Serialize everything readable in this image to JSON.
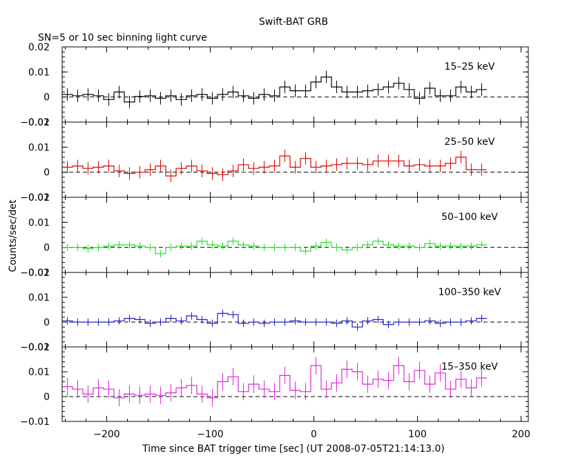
{
  "title": "Swift-BAT GRB",
  "subtitle": "SN=5 or 10 sec binning light curve",
  "ylabel": "Counts/sec/det",
  "xlabel": "Time since BAT trigger time [sec] (UT 2008-07-05T21:14:13.0)",
  "chart_data": {
    "type": "line",
    "step": true,
    "xlim": [
      -243,
      207
    ],
    "x_ticks": [
      -200,
      -100,
      0,
      100,
      200
    ],
    "x_tick_labels": [
      "−200",
      "−100",
      "0",
      "100",
      "200"
    ],
    "bin_start": -243,
    "bin_width": 10,
    "baseline": 0,
    "panels": [
      {
        "name": "15–25 keV",
        "color": "#000000",
        "ylim": [
          -0.01,
          0.02
        ],
        "y_ticks": [
          -0.01,
          0,
          0.01,
          0.02
        ],
        "y_tick_labels": [
          "−0.01",
          "0",
          "0.01",
          "0.02"
        ],
        "values": [
          0.001,
          0.0005,
          0.001,
          0.0005,
          -0.001,
          0.002,
          -0.002,
          0.0002,
          0.0005,
          -0.0005,
          0.0005,
          -0.001,
          0.0005,
          0.001,
          -0.0005,
          0.001,
          0.002,
          0.0005,
          -0.0005,
          0.001,
          0.0005,
          0.004,
          0.0025,
          0.0025,
          0.006,
          0.008,
          0.004,
          0.002,
          0.002,
          0.0025,
          0.003,
          0.004,
          0.0055,
          0.003,
          -0.0005,
          0.0035,
          0.0005,
          0.0005,
          0.004,
          0.002,
          0.003
        ],
        "errors": [
          0.0025,
          0.0025,
          0.0025,
          0.0025,
          0.0025,
          0.0025,
          0.0025,
          0.0025,
          0.0025,
          0.0025,
          0.0025,
          0.0025,
          0.0025,
          0.0025,
          0.0025,
          0.0025,
          0.0025,
          0.0025,
          0.0025,
          0.0025,
          0.0025,
          0.0025,
          0.0025,
          0.0025,
          0.0025,
          0.0025,
          0.0025,
          0.0025,
          0.0025,
          0.0025,
          0.0025,
          0.0025,
          0.0025,
          0.0025,
          0.0025,
          0.0025,
          0.0025,
          0.0025,
          0.0025,
          0.0025,
          0.0025
        ]
      },
      {
        "name": "25–50 keV",
        "color": "#dd0000",
        "ylim": [
          -0.01,
          0.02
        ],
        "y_ticks": [
          -0.01,
          0,
          0.01,
          0.02
        ],
        "y_tick_labels": [
          "−0.01",
          "0",
          "0.01",
          "0.02"
        ],
        "values": [
          0.002,
          0.0025,
          0.0015,
          0.002,
          0.0025,
          0.0005,
          -0.0005,
          0.0,
          0.001,
          0.0025,
          -0.0015,
          0.0015,
          0.0025,
          0.0005,
          -0.0005,
          -0.001,
          0.0005,
          0.003,
          0.0015,
          0.002,
          0.0025,
          0.0065,
          0.002,
          0.0055,
          0.002,
          0.0025,
          0.003,
          0.0035,
          0.0035,
          0.003,
          0.0045,
          0.0045,
          0.0045,
          0.0025,
          0.003,
          0.0025,
          0.0025,
          0.0035,
          0.006,
          0.001,
          0.001
        ],
        "errors": [
          0.0025,
          0.0025,
          0.0025,
          0.0025,
          0.0025,
          0.0025,
          0.0025,
          0.0025,
          0.0025,
          0.0025,
          0.0025,
          0.0025,
          0.0025,
          0.0025,
          0.0025,
          0.0025,
          0.0025,
          0.0025,
          0.0025,
          0.0025,
          0.0025,
          0.0025,
          0.0025,
          0.0025,
          0.0025,
          0.0025,
          0.0025,
          0.0025,
          0.0025,
          0.0025,
          0.0025,
          0.0025,
          0.0025,
          0.0025,
          0.0025,
          0.0025,
          0.0025,
          0.0025,
          0.0025,
          0.0025,
          0.0025
        ]
      },
      {
        "name": "50–100 keV",
        "color": "#22dd22",
        "ylim": [
          -0.01,
          0.02
        ],
        "y_ticks": [
          -0.01,
          0,
          0.01,
          0.02
        ],
        "y_tick_labels": [
          "−0.01",
          "0",
          "0.01",
          "0.02"
        ],
        "values": [
          0.0,
          0.0,
          -0.0005,
          0.0,
          0.0005,
          0.001,
          0.001,
          0.0005,
          0.0,
          -0.0025,
          0.0,
          0.0005,
          0.0005,
          0.0025,
          0.001,
          0.0005,
          0.0025,
          0.001,
          0.0005,
          0.0,
          0.0,
          0.0,
          0.0,
          -0.0015,
          0.0005,
          0.002,
          0.0,
          -0.001,
          0.0,
          0.001,
          0.0025,
          0.001,
          0.0005,
          0.0005,
          0.0,
          0.0015,
          0.0005,
          0.0005,
          0.0005,
          0.0005,
          0.001
        ],
        "errors": [
          0.0015,
          0.0015,
          0.0015,
          0.0015,
          0.0015,
          0.0015,
          0.0015,
          0.0015,
          0.0015,
          0.0015,
          0.0015,
          0.0015,
          0.0015,
          0.0015,
          0.0015,
          0.0015,
          0.0015,
          0.0015,
          0.0015,
          0.0015,
          0.0015,
          0.0015,
          0.0015,
          0.0015,
          0.0015,
          0.0015,
          0.0015,
          0.0015,
          0.0015,
          0.0015,
          0.0015,
          0.0015,
          0.0015,
          0.0015,
          0.0015,
          0.0015,
          0.0015,
          0.0015,
          0.0015,
          0.0015,
          0.0015
        ]
      },
      {
        "name": "100–350 keV",
        "color": "#1a1acc",
        "ylim": [
          -0.01,
          0.02
        ],
        "y_ticks": [
          -0.01,
          0,
          0.01,
          0.02
        ],
        "y_tick_labels": [
          "−0.01",
          "0",
          "0.01",
          "0.02"
        ],
        "values": [
          0.0005,
          0.0,
          0.0,
          0.0,
          0.0,
          0.0005,
          0.0015,
          0.001,
          -0.0005,
          0.0,
          0.0015,
          0.0005,
          0.0025,
          0.001,
          -0.0005,
          0.0035,
          0.003,
          -0.0005,
          0.0,
          -0.0005,
          0.0,
          0.0,
          0.0005,
          0.0,
          0.0,
          0.0,
          -0.0005,
          0.0005,
          -0.002,
          0.0005,
          0.001,
          -0.001,
          0.0,
          0.0,
          0.0,
          0.0005,
          -0.0005,
          0.0,
          0.0,
          0.0005,
          0.0015
        ],
        "errors": [
          0.0015,
          0.0015,
          0.0015,
          0.0015,
          0.0015,
          0.0015,
          0.0015,
          0.0015,
          0.0015,
          0.0015,
          0.0015,
          0.0015,
          0.0015,
          0.0015,
          0.0015,
          0.0015,
          0.0015,
          0.0015,
          0.0015,
          0.0015,
          0.0015,
          0.0015,
          0.0015,
          0.0015,
          0.0015,
          0.0015,
          0.0015,
          0.0015,
          0.0015,
          0.0015,
          0.0015,
          0.0015,
          0.0015,
          0.0015,
          0.0015,
          0.0015,
          0.0015,
          0.0015,
          0.0015,
          0.0015,
          0.0015
        ]
      },
      {
        "name": "15–350 keV",
        "color": "#dd22dd",
        "ylim": [
          -0.01,
          0.02
        ],
        "y_ticks": [
          -0.01,
          0,
          0.01,
          0.02
        ],
        "y_tick_labels": [
          "−0.01",
          "0",
          "0.01",
          "0.02"
        ],
        "values": [
          0.004,
          0.003,
          0.001,
          0.0035,
          0.003,
          -0.0005,
          0.001,
          0.0005,
          0.001,
          0.0005,
          0.0015,
          0.0035,
          0.0045,
          0.001,
          -0.0005,
          0.006,
          0.008,
          0.002,
          0.005,
          0.003,
          0.002,
          0.0085,
          0.0025,
          0.002,
          0.0125,
          0.003,
          0.0055,
          0.011,
          0.01,
          0.005,
          0.007,
          0.0065,
          0.0125,
          0.006,
          0.0105,
          0.005,
          0.0095,
          0.003,
          0.007,
          0.0035,
          0.0075
        ],
        "errors": [
          0.0035,
          0.0035,
          0.0035,
          0.0035,
          0.0035,
          0.0035,
          0.0035,
          0.0035,
          0.0035,
          0.0035,
          0.0035,
          0.0035,
          0.0035,
          0.0035,
          0.0035,
          0.0035,
          0.0035,
          0.0035,
          0.0035,
          0.0035,
          0.0035,
          0.0035,
          0.0035,
          0.0035,
          0.0035,
          0.0035,
          0.0035,
          0.0035,
          0.0035,
          0.0035,
          0.0035,
          0.0035,
          0.0035,
          0.0035,
          0.0035,
          0.0035,
          0.0035,
          0.0035,
          0.0035,
          0.0035,
          0.0035
        ]
      }
    ]
  }
}
